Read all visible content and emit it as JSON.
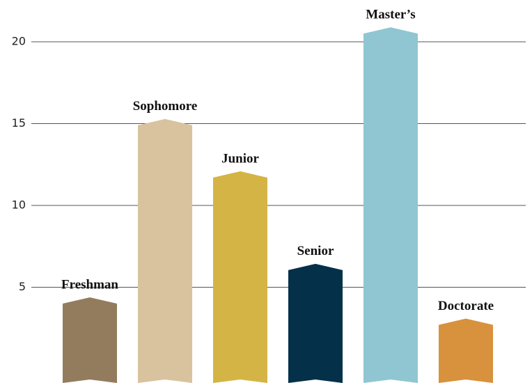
{
  "chart_data": {
    "type": "bar",
    "categories": [
      "Freshman",
      "Sophomore",
      "Junior",
      "Senior",
      "Master’s",
      "Doctorate"
    ],
    "values": [
      4,
      14.9,
      11.7,
      6.05,
      20.5,
      2.7
    ],
    "colors": [
      "#937c5e",
      "#d9c39f",
      "#d4b445",
      "#04304a",
      "#8fc6d1",
      "#d8913c"
    ],
    "ylim": [
      0,
      22
    ],
    "yticks": [
      5,
      10,
      15,
      20
    ],
    "grid": true
  }
}
